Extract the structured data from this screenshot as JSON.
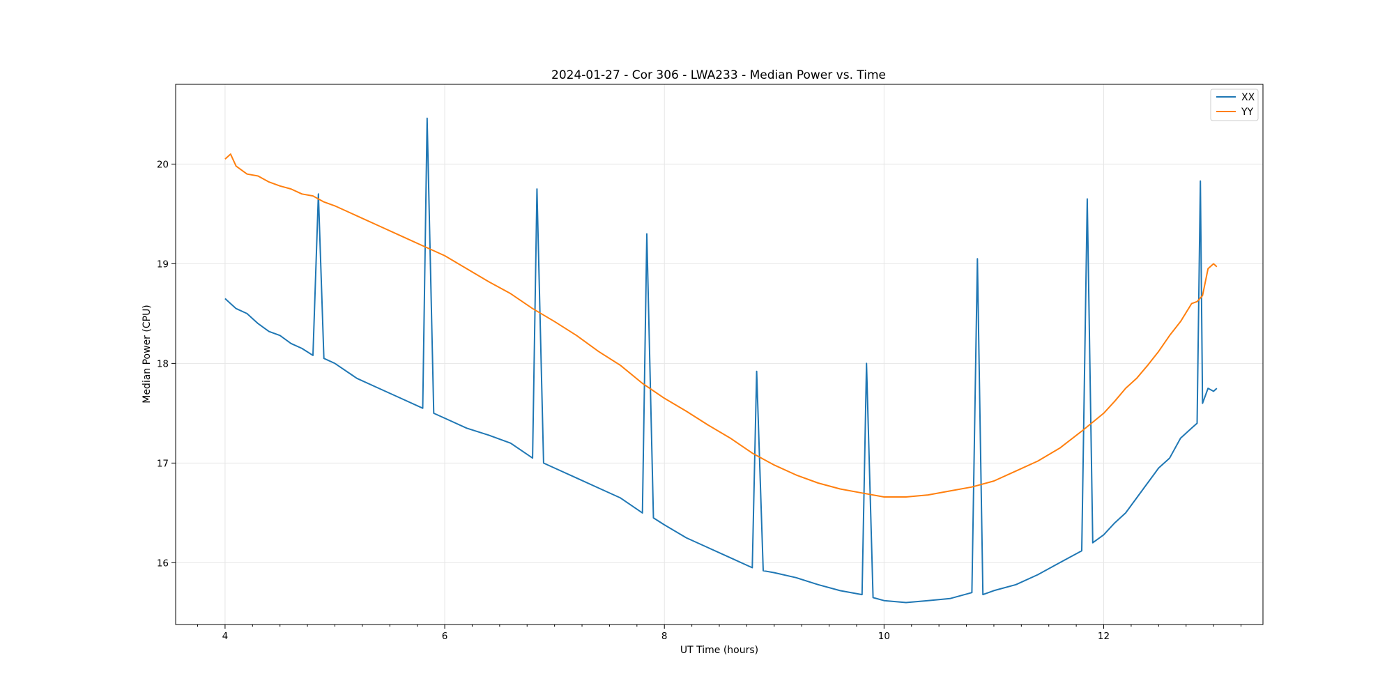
{
  "chart_data": {
    "type": "line",
    "title": "2024-01-27 - Cor 306 - LWA233 - Median Power vs. Time",
    "xlabel": "UT Time (hours)",
    "ylabel": "Median Power (CPU)",
    "xlim": [
      3.55,
      13.45
    ],
    "ylim": [
      15.38,
      20.8
    ],
    "xticks": [
      4,
      6,
      8,
      10,
      12
    ],
    "yticks": [
      16,
      17,
      18,
      19,
      20
    ],
    "xtick_labels": [
      "4",
      "6",
      "8",
      "10",
      "12"
    ],
    "ytick_labels": [
      "16",
      "17",
      "18",
      "19",
      "20"
    ],
    "grid": true,
    "legend_position": "top-right",
    "series": [
      {
        "name": "XX",
        "color": "#1f77b4",
        "x": [
          4.0,
          4.1,
          4.2,
          4.3,
          4.4,
          4.5,
          4.6,
          4.7,
          4.8,
          4.85,
          4.9,
          5.0,
          5.2,
          5.4,
          5.6,
          5.8,
          5.84,
          5.9,
          6.0,
          6.2,
          6.4,
          6.6,
          6.8,
          6.84,
          6.9,
          7.0,
          7.2,
          7.4,
          7.6,
          7.8,
          7.84,
          7.9,
          8.0,
          8.2,
          8.4,
          8.6,
          8.8,
          8.84,
          8.9,
          9.0,
          9.2,
          9.4,
          9.6,
          9.8,
          9.84,
          9.9,
          10.0,
          10.2,
          10.4,
          10.6,
          10.8,
          10.85,
          10.9,
          11.0,
          11.2,
          11.4,
          11.6,
          11.8,
          11.85,
          11.9,
          12.0,
          12.1,
          12.2,
          12.3,
          12.4,
          12.5,
          12.6,
          12.7,
          12.8,
          12.85,
          12.88,
          12.9,
          12.95,
          13.0,
          13.03
        ],
        "values": [
          18.65,
          18.55,
          18.5,
          18.4,
          18.32,
          18.28,
          18.2,
          18.15,
          18.08,
          19.7,
          18.05,
          18.0,
          17.85,
          17.75,
          17.65,
          17.55,
          20.46,
          17.5,
          17.45,
          17.35,
          17.28,
          17.2,
          17.05,
          19.75,
          17.0,
          16.95,
          16.85,
          16.75,
          16.65,
          16.5,
          19.3,
          16.45,
          16.38,
          16.25,
          16.15,
          16.05,
          15.95,
          17.92,
          15.92,
          15.9,
          15.85,
          15.78,
          15.72,
          15.68,
          18.0,
          15.65,
          15.62,
          15.6,
          15.62,
          15.64,
          15.7,
          19.05,
          15.68,
          15.72,
          15.78,
          15.88,
          16.0,
          16.12,
          19.65,
          16.2,
          16.28,
          16.4,
          16.5,
          16.65,
          16.8,
          16.95,
          17.05,
          17.25,
          17.35,
          17.4,
          19.83,
          17.6,
          17.75,
          17.72,
          17.75
        ]
      },
      {
        "name": "YY",
        "color": "#ff7f0e",
        "x": [
          4.0,
          4.05,
          4.1,
          4.2,
          4.3,
          4.4,
          4.5,
          4.6,
          4.7,
          4.8,
          4.9,
          5.0,
          5.2,
          5.4,
          5.6,
          5.8,
          6.0,
          6.2,
          6.4,
          6.6,
          6.8,
          7.0,
          7.2,
          7.4,
          7.6,
          7.8,
          8.0,
          8.2,
          8.4,
          8.6,
          8.8,
          9.0,
          9.2,
          9.4,
          9.6,
          9.8,
          10.0,
          10.2,
          10.4,
          10.6,
          10.8,
          11.0,
          11.2,
          11.4,
          11.6,
          11.8,
          12.0,
          12.1,
          12.2,
          12.3,
          12.4,
          12.5,
          12.6,
          12.7,
          12.8,
          12.85,
          12.9,
          12.95,
          13.0,
          13.03
        ],
        "values": [
          20.05,
          20.1,
          19.98,
          19.9,
          19.88,
          19.82,
          19.78,
          19.75,
          19.7,
          19.68,
          19.62,
          19.58,
          19.48,
          19.38,
          19.28,
          19.18,
          19.08,
          18.95,
          18.82,
          18.7,
          18.55,
          18.42,
          18.28,
          18.12,
          17.98,
          17.8,
          17.65,
          17.52,
          17.38,
          17.25,
          17.1,
          16.98,
          16.88,
          16.8,
          16.74,
          16.7,
          16.66,
          16.66,
          16.68,
          16.72,
          16.76,
          16.82,
          16.92,
          17.02,
          17.15,
          17.32,
          17.5,
          17.62,
          17.75,
          17.85,
          17.98,
          18.12,
          18.28,
          18.42,
          18.6,
          18.62,
          18.68,
          18.95,
          19.0,
          18.97
        ]
      }
    ]
  }
}
